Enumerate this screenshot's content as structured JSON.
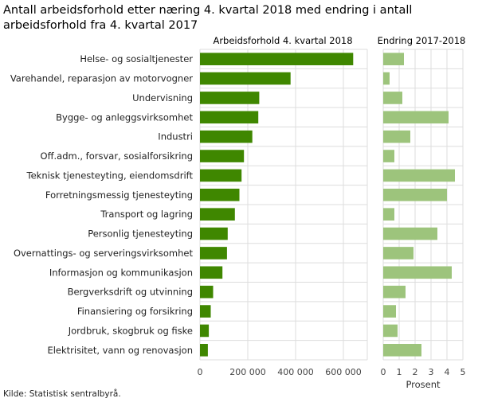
{
  "chart_data": {
    "type": "bar",
    "title": "Antall arbeidsforhold etter næring 4. kvartal 2018 med endring i antall arbeidsforhold fra 4. kvartal 2017",
    "source": "Kilde: Statistisk sentralbyrå.",
    "categories": [
      "Helse- og sosialtjenester",
      "Varehandel, reparasjon av motorvogner",
      "Undervisning",
      "Bygge- og anleggsvirksomhet",
      "Industri",
      "Off.adm., forsvar, sosialforsikring",
      "Teknisk tjenesteyting, eiendomsdrift",
      "Forretningsmessig tjenesteyting",
      "Transport og lagring",
      "Personlig tjenesteyting",
      "Overnattings- og serveringsvirksomhet",
      "Informasjon og kommunikasjon",
      "Bergverksdrift og utvinning",
      "Finansiering og forsikring",
      "Jordbruk, skogbruk og fiske",
      "Elektrisitet, vann og renovasjon"
    ],
    "panels": [
      {
        "title": "Arbeidsforhold 4. kvartal 2018",
        "xlabel": "",
        "xlim": [
          0,
          700000
        ],
        "ticks": [
          0,
          200000,
          400000,
          600000
        ],
        "tick_labels": [
          "0",
          "200 000",
          "400 000",
          "600 000"
        ],
        "color": "#3f8700",
        "values": [
          641000,
          379000,
          248000,
          244000,
          219000,
          184000,
          174000,
          165000,
          146000,
          116000,
          113000,
          94000,
          55000,
          45000,
          37000,
          33000
        ]
      },
      {
        "title": "Endring 2017-2018",
        "xlabel": "Prosent",
        "xlim": [
          0,
          5
        ],
        "ticks": [
          0,
          1,
          2,
          3,
          4,
          5
        ],
        "tick_labels": [
          "0",
          "1",
          "2",
          "3",
          "4",
          "5"
        ],
        "color": "#9dc47c",
        "values": [
          1.3,
          0.4,
          1.2,
          4.1,
          1.7,
          0.7,
          4.5,
          4.0,
          0.7,
          3.4,
          1.9,
          4.3,
          1.4,
          0.8,
          0.9,
          2.4
        ]
      }
    ]
  }
}
